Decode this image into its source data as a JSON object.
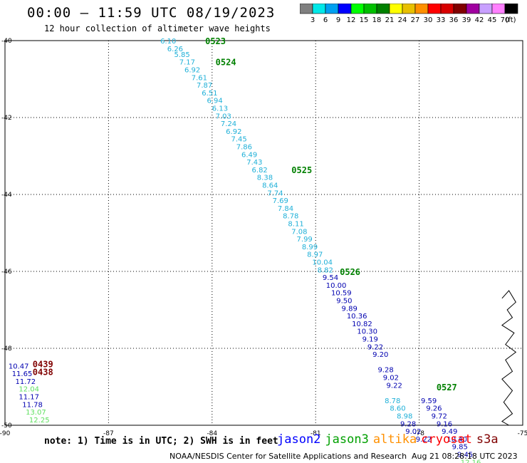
{
  "header": {
    "title": "00:00 – 11:59 UTC 08/19/2023",
    "subtitle": "12 hour collection of altimeter wave heights"
  },
  "colorbar": {
    "labels": [
      "3",
      "6",
      "9",
      "12",
      "15",
      "18",
      "21",
      "24",
      "27",
      "30",
      "33",
      "36",
      "39",
      "42",
      "45",
      "70"
    ],
    "unit": "(ft)",
    "colors": [
      "#808080",
      "#00e8e8",
      "#00a0f0",
      "#0000ff",
      "#00ff00",
      "#00c000",
      "#008000",
      "#ffff00",
      "#e8c000",
      "#ff9000",
      "#ff0000",
      "#d80000",
      "#800000",
      "#a000a0",
      "#c8a0ff",
      "#ff80ff",
      "#000000"
    ]
  },
  "axes": {
    "lon_ticks": [
      "-90",
      "-87",
      "-84",
      "-81",
      "-78",
      "-75"
    ],
    "lat_ticks": [
      "-40",
      "-42",
      "-44",
      "-46",
      "-48",
      "-50"
    ]
  },
  "chart_data": {
    "type": "scatter",
    "x_range": [
      -90,
      -75
    ],
    "y_range": [
      -50,
      -40
    ],
    "tracks": [
      {
        "satellite": "jason3",
        "color": "#1fb0d8",
        "points": [
          [
            -85.5,
            -40.0,
            "6.10"
          ],
          [
            -85.3,
            -40.2,
            "6.26"
          ],
          [
            -85.1,
            -40.35,
            "5.85"
          ],
          [
            -84.95,
            -40.55,
            "7.17"
          ],
          [
            -84.8,
            -40.75,
            "6.92"
          ],
          [
            -84.6,
            -40.95,
            "7.61"
          ],
          [
            -84.45,
            -41.15,
            "7.87"
          ],
          [
            -84.3,
            -41.35,
            "6.51"
          ],
          [
            -84.15,
            -41.55,
            "6.94"
          ],
          [
            -84.0,
            -41.75,
            "6.13"
          ],
          [
            -83.9,
            -41.95,
            "7.03"
          ],
          [
            -83.75,
            -42.15,
            "7.24"
          ],
          [
            -83.6,
            -42.35,
            "6.92"
          ],
          [
            -83.45,
            -42.55,
            "7.45"
          ],
          [
            -83.3,
            -42.75,
            "7.86"
          ],
          [
            -83.15,
            -42.95,
            "6.49"
          ],
          [
            -83.0,
            -43.15,
            "7.43"
          ],
          [
            -82.85,
            -43.35,
            "6.82"
          ],
          [
            -82.7,
            -43.55,
            "8.38"
          ],
          [
            -82.55,
            -43.75,
            "8.64"
          ],
          [
            -82.4,
            -43.95,
            "7.74"
          ],
          [
            -82.25,
            -44.15,
            "7.69"
          ],
          [
            -82.1,
            -44.35,
            "7.84"
          ],
          [
            -81.95,
            -44.55,
            "8.78"
          ],
          [
            -81.8,
            -44.75,
            "8.11"
          ],
          [
            -81.7,
            -44.95,
            "7.08"
          ],
          [
            -81.55,
            -45.15,
            "7.99"
          ],
          [
            -81.4,
            -45.35,
            "8.99"
          ],
          [
            -81.25,
            -45.55,
            "8.97"
          ],
          [
            -81.1,
            -45.75,
            "10.04"
          ],
          [
            -80.95,
            -45.95,
            "8.82"
          ],
          [
            -79.0,
            -49.35,
            "8.78"
          ],
          [
            -78.85,
            -49.55,
            "8.60"
          ],
          [
            -78.65,
            -49.75,
            "8.98"
          ]
        ]
      },
      {
        "satellite": "jason2",
        "color": "#0000b0",
        "points": [
          [
            -80.8,
            -46.15,
            "9.54"
          ],
          [
            -80.7,
            -46.35,
            "10.00"
          ],
          [
            -80.55,
            -46.55,
            "10.59"
          ],
          [
            -80.4,
            -46.75,
            "9.50"
          ],
          [
            -80.25,
            -46.95,
            "9.89"
          ],
          [
            -80.1,
            -47.15,
            "10.36"
          ],
          [
            -79.95,
            -47.35,
            "10.82"
          ],
          [
            -79.8,
            -47.55,
            "10.30"
          ],
          [
            -79.65,
            -47.75,
            "9.19"
          ],
          [
            -79.5,
            -47.95,
            "9.22"
          ],
          [
            -79.35,
            -48.15,
            "9.20"
          ],
          [
            -79.2,
            -48.55,
            "9.28"
          ],
          [
            -79.05,
            -48.75,
            "9.02"
          ],
          [
            -78.95,
            -48.95,
            "9.22"
          ],
          [
            -78.55,
            -49.95,
            "9.28"
          ],
          [
            -78.4,
            -50.15,
            "9.02"
          ],
          [
            -78.1,
            -50.35,
            "9.22"
          ],
          [
            -77.95,
            -49.35,
            "9.59"
          ],
          [
            -77.8,
            -49.55,
            "9.26"
          ],
          [
            -77.65,
            -49.75,
            "9.72"
          ],
          [
            -77.5,
            -49.95,
            "9.16"
          ],
          [
            -77.35,
            -50.15,
            "9.49"
          ],
          [
            -77.2,
            -50.35,
            "10.40"
          ],
          [
            -77.05,
            -50.55,
            "9.85"
          ],
          [
            -76.9,
            -50.75,
            "9.45"
          ],
          [
            -89.9,
            -48.45,
            "10.47"
          ],
          [
            -89.8,
            -48.65,
            "11.65"
          ],
          [
            -89.7,
            -48.85,
            "11.72"
          ],
          [
            -89.6,
            -49.25,
            "11.17"
          ],
          [
            -89.5,
            -49.45,
            "11.78"
          ]
        ]
      },
      {
        "satellite": "altika",
        "color": "#60e060",
        "points": [
          [
            -89.6,
            -49.05,
            "12.04"
          ],
          [
            -89.4,
            -49.65,
            "13.07"
          ],
          [
            -89.3,
            -49.85,
            "12.25"
          ],
          [
            -76.8,
            -50.95,
            "12.16"
          ]
        ]
      },
      {
        "satellite": "cryosat",
        "color": "#800000",
        "points": []
      }
    ],
    "pass_labels": [
      {
        "text": "0523",
        "x": -84.2,
        "y": -40.0
      },
      {
        "text": "0524",
        "x": -83.9,
        "y": -40.55
      },
      {
        "text": "0525",
        "x": -81.7,
        "y": -43.35
      },
      {
        "text": "0526",
        "x": -80.3,
        "y": -46.0
      },
      {
        "text": "0527",
        "x": -77.5,
        "y": -49.0
      },
      {
        "text": "0439",
        "x": -89.2,
        "y": -48.4
      },
      {
        "text": "0438",
        "x": -89.2,
        "y": -48.6
      }
    ]
  },
  "footer": {
    "note": "note: 1) Time is in UTC; 2) SWH is in feet",
    "satellites": [
      {
        "name": "jason2",
        "color": "#0000ff"
      },
      {
        "name": "jason3",
        "color": "#00a000"
      },
      {
        "name": "altika",
        "color": "#ff9000"
      },
      {
        "name": "cryosat",
        "color": "#ff0000"
      },
      {
        "name": "s3a",
        "color": "#800000"
      }
    ],
    "credit": "NOAA/NESDIS Center for Satellite Applications and Research",
    "timestamp": "Aug 21 08:28:18 UTC 2023"
  }
}
